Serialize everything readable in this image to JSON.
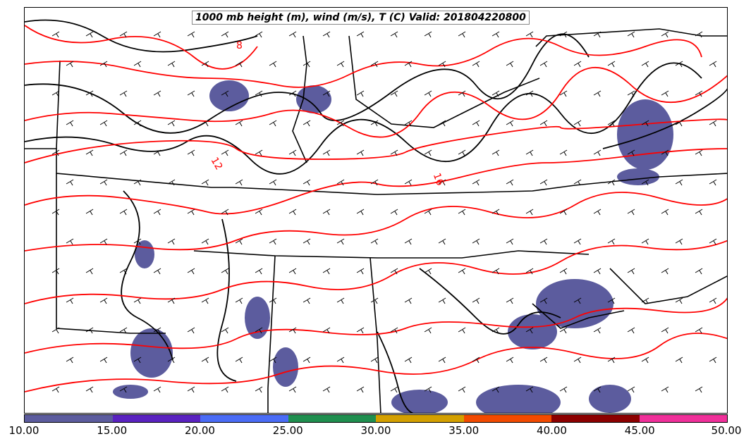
{
  "title": "1000 mb height (m), wind (m/s), T (C) Valid: 201804220800",
  "contour_labels": [
    "8",
    "12",
    "16"
  ],
  "colors": {
    "temperature_contour": "#ff0000",
    "height_contour": "#000000",
    "boundaries": "#000000",
    "precip_fill": "#5c5c9e"
  },
  "colorbar": {
    "segment_colors": [
      "#5c5c9e",
      "#5a22c0",
      "#4a6cf6",
      "#1f8f4f",
      "#d4a000",
      "#f24a00",
      "#8c0000",
      "#f0309a"
    ],
    "tick_labels": [
      "10.00",
      "15.00",
      "20.00",
      "25.00",
      "30.00",
      "35.00",
      "40.00",
      "45.00",
      "50.00"
    ]
  }
}
